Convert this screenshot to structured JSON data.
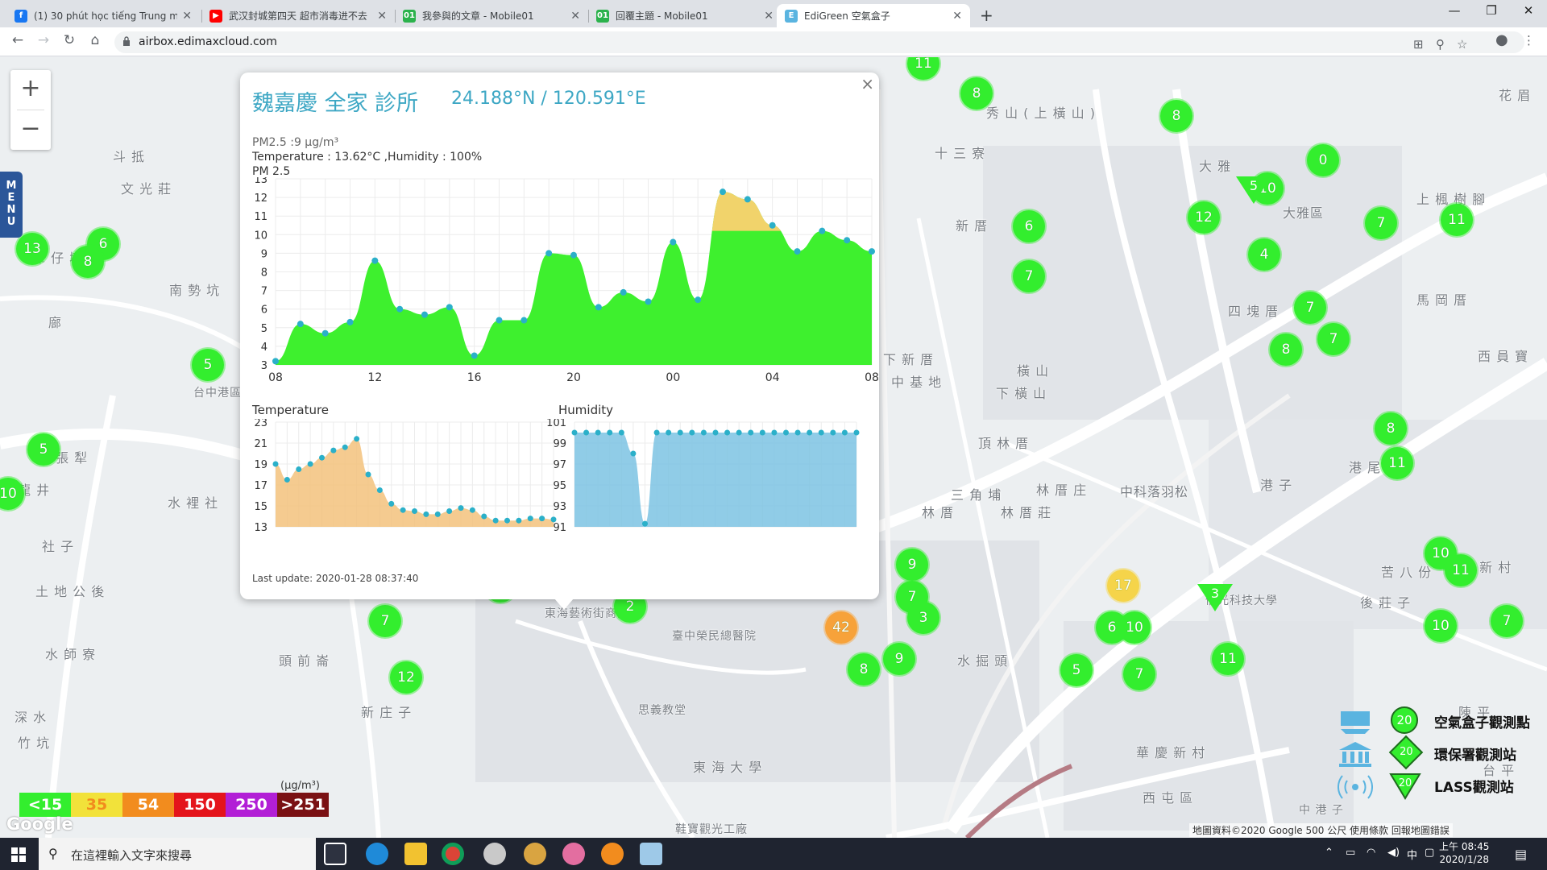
{
  "browser": {
    "tabs": [
      {
        "title": "(1) 30 phút học tiếng Trung mỗi",
        "favicon": "facebook-icon",
        "color": "#1877f2"
      },
      {
        "title": "武汉封城第四天 超市消毒进不去",
        "favicon": "youtube-icon",
        "color": "#ff0000"
      },
      {
        "title": "我參與的文章 - Mobile01",
        "favicon": "mobile01-icon",
        "color": "#2bb24c"
      },
      {
        "title": "回覆主題 - Mobile01",
        "favicon": "mobile01-icon",
        "color": "#2bb24c"
      },
      {
        "title": "EdiGreen 空氣盒子",
        "favicon": "edigreen-icon",
        "color": "#5ab4e0"
      }
    ],
    "url": "airbox.edimaxcloud.com"
  },
  "map": {
    "labels": [
      {
        "text": "秀 山 ( 上 橫 山 )"
      },
      {
        "text": "十 三 寮"
      },
      {
        "text": "大 雅"
      },
      {
        "text": "大雅區"
      },
      {
        "text": "上 楓 樹 腳"
      },
      {
        "text": "花 眉"
      },
      {
        "text": "新 厝"
      },
      {
        "text": "四 塊 厝"
      },
      {
        "text": "馬 岡 厝"
      },
      {
        "text": "西 員 寶"
      },
      {
        "text": "下 新 厝"
      },
      {
        "text": "中 基 地"
      },
      {
        "text": "橫 山"
      },
      {
        "text": "下 橫 山"
      },
      {
        "text": "頂 林 厝"
      },
      {
        "text": "港 尾 子"
      },
      {
        "text": "港 子"
      },
      {
        "text": "三 角 埔"
      },
      {
        "text": "林 厝 庄"
      },
      {
        "text": "林 厝"
      },
      {
        "text": "林 厝 莊"
      },
      {
        "text": "中科落羽松"
      },
      {
        "text": "中 渡 新 村"
      },
      {
        "text": "苦 八 份"
      },
      {
        "text": "後 莊 子"
      },
      {
        "text": "水 掘 頭"
      },
      {
        "text": "華 慶 新 村"
      },
      {
        "text": "西 屯 區"
      },
      {
        "text": "陳 平"
      },
      {
        "text": "東 海 大 學"
      },
      {
        "text": "新 庄 子"
      },
      {
        "text": "頭 前 崙"
      },
      {
        "text": "水 師 寮"
      },
      {
        "text": "土 地 公 後"
      },
      {
        "text": "深 水"
      },
      {
        "text": "竹 坑"
      },
      {
        "text": "九 張 犁"
      },
      {
        "text": "龍 井"
      },
      {
        "text": "水 裡 社"
      },
      {
        "text": "南 勢 坑"
      },
      {
        "text": "潭 仔 墘"
      },
      {
        "text": "斗 抵"
      },
      {
        "text": "文 光 莊"
      },
      {
        "text": "廍"
      },
      {
        "text": "台中港區"
      },
      {
        "text": "東海藝術街商圈"
      },
      {
        "text": "臺中榮民總醫院"
      },
      {
        "text": "思義教堂"
      },
      {
        "text": "中 港 子"
      },
      {
        "text": "社 子"
      },
      {
        "text": "台 平"
      },
      {
        "text": "鞋寶觀光工廠"
      },
      {
        "text": "備光科技大學"
      }
    ],
    "markers": [
      {
        "v": "11"
      },
      {
        "v": "8"
      },
      {
        "v": "8"
      },
      {
        "v": "0"
      },
      {
        "v": "10"
      },
      {
        "v": "6"
      },
      {
        "v": "12"
      },
      {
        "v": "7"
      },
      {
        "v": "11"
      },
      {
        "v": "4"
      },
      {
        "v": "7"
      },
      {
        "v": "7"
      },
      {
        "v": "8"
      },
      {
        "v": "7"
      },
      {
        "v": "13"
      },
      {
        "v": "6"
      },
      {
        "v": "8"
      },
      {
        "v": "5"
      },
      {
        "v": "5"
      },
      {
        "v": "10"
      },
      {
        "v": "8"
      },
      {
        "v": "11"
      },
      {
        "v": "7"
      },
      {
        "v": "6"
      },
      {
        "v": "9"
      },
      {
        "v": "10"
      },
      {
        "v": "9"
      },
      {
        "v": "5"
      },
      {
        "v": "7"
      },
      {
        "v": "9"
      },
      {
        "v": "8"
      },
      {
        "v": "0"
      },
      {
        "v": "10"
      },
      {
        "v": "9"
      },
      {
        "v": "7"
      },
      {
        "v": "3"
      },
      {
        "v": "2"
      },
      {
        "v": "7"
      },
      {
        "v": "42",
        "c": "orange"
      },
      {
        "v": "17",
        "c": "yellow"
      },
      {
        "v": "6"
      },
      {
        "v": "10"
      },
      {
        "v": "11"
      },
      {
        "v": "5"
      },
      {
        "v": "7"
      },
      {
        "v": "8"
      },
      {
        "v": "9"
      },
      {
        "v": "12"
      },
      {
        "v": "10"
      },
      {
        "v": "11"
      },
      {
        "v": "10"
      },
      {
        "v": "7"
      }
    ],
    "triangles": [
      {
        "v": "5"
      },
      {
        "v": "3"
      }
    ]
  },
  "popup": {
    "title": "魏嘉慶 全家 診所",
    "coords": "24.188°N / 120.591°E",
    "pm_line": "PM2.5 :9 µg/m³",
    "temp_line": "Temperature : 13.62°C ,Humidity : 100%",
    "pm_chart_label": "PM 2.5",
    "temp_chart_label": "Temperature",
    "hum_chart_label": "Humidity",
    "last_update": "Last update: 2020-01-28 08:37:40",
    "close_symbol": "×"
  },
  "chart_data": [
    {
      "type": "area",
      "title": "PM 2.5",
      "xticks": [
        "08",
        "12",
        "16",
        "20",
        "00",
        "04",
        "08"
      ],
      "y_ticks": [
        3,
        4,
        5,
        6,
        7,
        8,
        9,
        10,
        11,
        12,
        13
      ],
      "ylim": [
        3,
        13
      ],
      "threshold": 10.2,
      "colors": {
        "below": "#3ef02e",
        "above": "#f1d36b"
      },
      "values": [
        3.2,
        5.2,
        4.7,
        5.3,
        8.6,
        6.0,
        5.7,
        6.1,
        3.5,
        5.4,
        5.4,
        9.0,
        8.9,
        6.1,
        6.9,
        6.4,
        9.6,
        6.5,
        12.3,
        11.9,
        10.5,
        9.1,
        10.2,
        9.7,
        9.1
      ]
    },
    {
      "type": "area",
      "title": "Temperature",
      "y_ticks": [
        13,
        15,
        17,
        19,
        21,
        23
      ],
      "ylim": [
        13,
        23
      ],
      "color": "#f3c27c",
      "values": [
        19.0,
        17.5,
        18.5,
        19.0,
        19.6,
        20.3,
        20.6,
        21.4,
        18.0,
        16.5,
        15.2,
        14.6,
        14.5,
        14.2,
        14.2,
        14.5,
        14.8,
        14.6,
        14.0,
        13.6,
        13.6,
        13.6,
        13.8,
        13.8,
        13.7
      ]
    },
    {
      "type": "area",
      "title": "Humidity",
      "y_ticks": [
        91,
        93,
        95,
        97,
        99,
        101
      ],
      "ylim": [
        91,
        101
      ],
      "color": "#7cc3e3",
      "values": [
        100,
        100,
        100,
        100,
        100,
        98,
        91.3,
        100,
        100,
        100,
        100,
        100,
        100,
        100,
        100,
        100,
        100,
        100,
        100,
        100,
        100,
        100,
        100,
        100,
        100
      ]
    }
  ],
  "air_legend": {
    "levels": [
      {
        "label": "<15",
        "color": "#33ee2e"
      },
      {
        "label": "35",
        "color": "#f2e23a"
      },
      {
        "label": "54",
        "color": "#f28c1e"
      },
      {
        "label": "150",
        "color": "#e4141b"
      },
      {
        "label": "250",
        "color": "#b21fd6"
      },
      {
        "label": ">251",
        "color": "#7a1114"
      }
    ],
    "unit": "(µg/m³)"
  },
  "device_legend": [
    {
      "badge": "20",
      "label": "空氣盒子觀測點",
      "icon": "airbox-icon"
    },
    {
      "badge": "20",
      "label": "環保署觀測站",
      "icon": "epa-building-icon"
    },
    {
      "badge": "20",
      "label": "LASS觀測站",
      "icon": "lass-icon"
    }
  ],
  "attribution": "地圖資料©2020 Google   500 公尺        使用條款    回報地圖錯誤",
  "google": "Google",
  "menu_label": "MENU",
  "taskbar": {
    "search_placeholder": "在這裡輸入文字來搜尋",
    "time": "上午 08:45",
    "date": "2020/1/28",
    "ime": "中"
  }
}
